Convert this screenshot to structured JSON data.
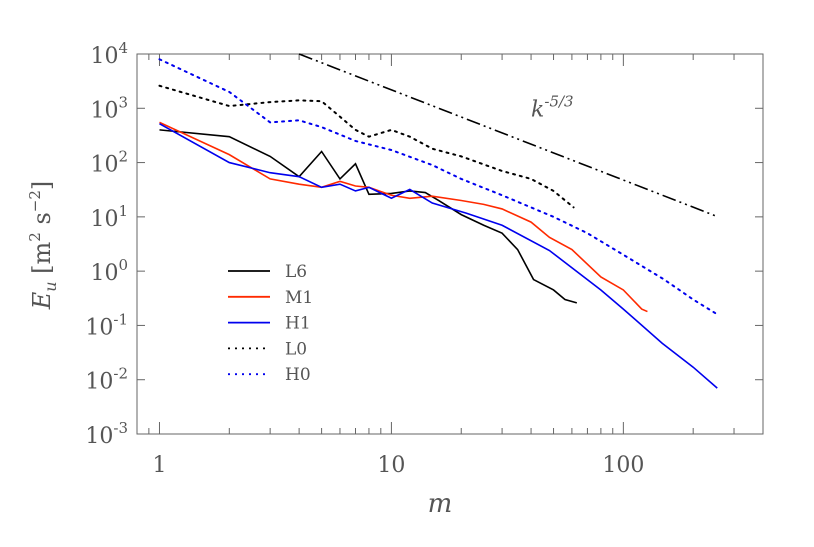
{
  "chart_data": {
    "type": "line",
    "xlabel": "m",
    "ylabel": "E_u [m^2 s^-2]",
    "xscale": "log",
    "yscale": "log",
    "xlim": [
      0.8,
      400
    ],
    "ylim": [
      0.001,
      10000
    ],
    "xticks": [
      1,
      10,
      100
    ],
    "xtick_labels": [
      "1",
      "10",
      "100"
    ],
    "yticks": [
      0.001,
      0.01,
      0.1,
      1,
      10,
      100,
      1000,
      10000
    ],
    "ytick_labels": [
      "10^-3",
      "10^-2",
      "10^-1",
      "10^0",
      "10^1",
      "10^2",
      "10^3",
      "10^4"
    ],
    "grid": false,
    "legend_position": "lower-left",
    "annotation": {
      "text": "k^-5/3",
      "x": 40,
      "y": 700
    },
    "series": [
      {
        "name": "L6",
        "color": "#000000",
        "style": "solid",
        "x": [
          1,
          2,
          3,
          4,
          5,
          6,
          7,
          8,
          10,
          12,
          14,
          16,
          20,
          25,
          30,
          35,
          41,
          50,
          56,
          63
        ],
        "y": [
          400,
          300,
          130,
          55,
          160,
          50,
          95,
          26,
          27,
          30,
          28,
          20,
          11,
          7,
          5,
          2.5,
          0.7,
          0.45,
          0.3,
          0.26
        ]
      },
      {
        "name": "M1",
        "color": "#ff2a00",
        "style": "solid",
        "x": [
          1,
          2,
          3,
          4,
          5,
          6,
          7,
          8,
          10,
          12,
          15,
          20,
          25,
          30,
          40,
          48,
          60,
          80,
          100,
          120,
          127
        ],
        "y": [
          550,
          140,
          50,
          40,
          35,
          45,
          37,
          35,
          25,
          22,
          24,
          20,
          17,
          14,
          8,
          4.2,
          2.5,
          0.78,
          0.45,
          0.2,
          0.18
        ]
      },
      {
        "name": "H1",
        "color": "#0000ee",
        "style": "solid",
        "x": [
          1,
          2,
          3,
          4,
          5,
          6,
          7,
          8,
          10,
          12,
          15,
          21,
          30,
          48,
          80,
          100,
          147,
          200,
          254
        ],
        "y": [
          520,
          100,
          65,
          55,
          35,
          40,
          30,
          35,
          22,
          32,
          18,
          11.7,
          7,
          2.4,
          0.45,
          0.2,
          0.047,
          0.017,
          0.007
        ]
      },
      {
        "name": "L0",
        "color": "#000000",
        "style": "dotted",
        "x": [
          1,
          2,
          3,
          4,
          5,
          6,
          7,
          8,
          10,
          12,
          15,
          20,
          30,
          40,
          50,
          61
        ],
        "y": [
          2600,
          1100,
          1300,
          1400,
          1350,
          700,
          400,
          300,
          400,
          300,
          180,
          130,
          70,
          50,
          30,
          15
        ]
      },
      {
        "name": "H0",
        "color": "#0000ee",
        "style": "dotted",
        "x": [
          1,
          2,
          3,
          4,
          5,
          7,
          10,
          15,
          20,
          30,
          50,
          70,
          100,
          150,
          200,
          254
        ],
        "y": [
          8000,
          2000,
          550,
          600,
          450,
          250,
          170,
          90,
          50,
          25,
          10,
          5,
          2,
          0.7,
          0.3,
          0.16
        ]
      },
      {
        "color": "#000000",
        "style": "dashdotdot",
        "x": [
          4,
          256
        ],
        "y": [
          10000,
          10
        ]
      }
    ]
  }
}
